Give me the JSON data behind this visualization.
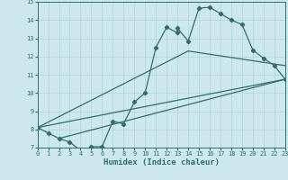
{
  "title": "",
  "xlabel": "Humidex (Indice chaleur)",
  "bg_color": "#cce8ec",
  "line_color": "#2e6e6a",
  "grid_color": "#b0d4d8",
  "xlim": [
    0,
    23
  ],
  "ylim": [
    7,
    15
  ],
  "xticks": [
    0,
    1,
    2,
    3,
    4,
    5,
    6,
    7,
    8,
    9,
    10,
    11,
    12,
    13,
    14,
    15,
    16,
    17,
    18,
    19,
    20,
    21,
    22,
    23
  ],
  "yticks": [
    7,
    8,
    9,
    10,
    11,
    12,
    13,
    14,
    15
  ],
  "line1_x": [
    0,
    1,
    2,
    3,
    4,
    5,
    5,
    6,
    7,
    8,
    9,
    10,
    11,
    12,
    13,
    13,
    14,
    15,
    16,
    17,
    18,
    19,
    20,
    21,
    22,
    23
  ],
  "line1_y": [
    8.1,
    7.8,
    7.5,
    7.3,
    6.85,
    6.85,
    7.05,
    7.05,
    8.45,
    8.3,
    9.5,
    10.0,
    12.5,
    13.6,
    13.3,
    13.55,
    12.85,
    14.65,
    14.7,
    14.35,
    14.0,
    13.75,
    12.35,
    11.9,
    11.5,
    10.75
  ],
  "line2_x": [
    0,
    23
  ],
  "line2_y": [
    8.1,
    10.75
  ],
  "line3_x": [
    0,
    14,
    23
  ],
  "line3_y": [
    8.1,
    12.3,
    11.5
  ],
  "line4_x": [
    2,
    23
  ],
  "line4_y": [
    7.5,
    10.75
  ]
}
